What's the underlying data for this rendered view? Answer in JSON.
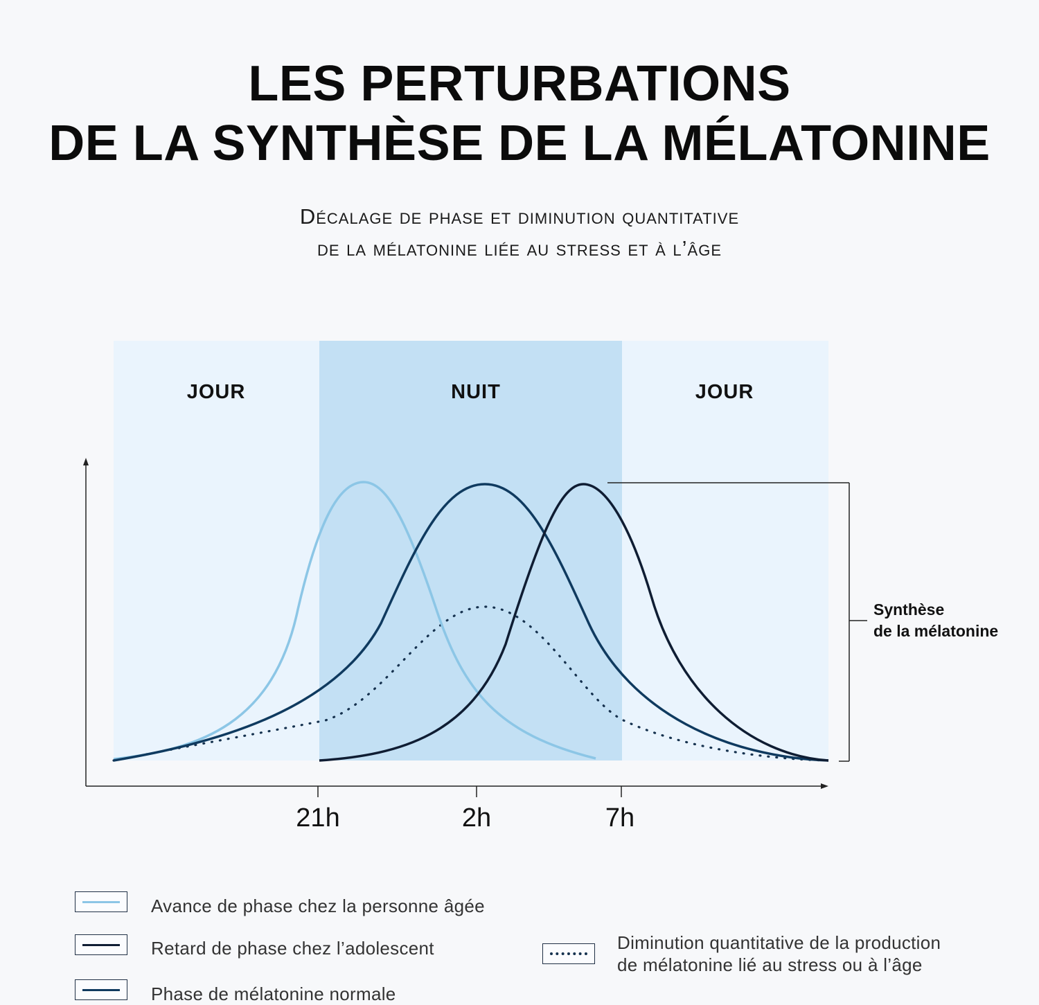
{
  "title_lines": [
    "LES PERTURBATIONS",
    "DE LA SYNTHÈSE DE LA MÉLATONINE"
  ],
  "subtitle_lines": [
    "Décalage de phase et diminution quantitative",
    "de la mélatonine liée au stress et à l’âge"
  ],
  "colors": {
    "jour_band": "#eaf4fd",
    "nuit_band": "#c3e0f4",
    "avance": "#8cc6e6",
    "retard": "#0f1d33",
    "normale": "#0f3a5f",
    "diminution": "#16324f"
  },
  "chart_data": {
    "type": "line",
    "title": "",
    "xlabel": "",
    "ylabel": "",
    "x_ticks": [
      "21h",
      "2h",
      "7h"
    ],
    "bands": [
      {
        "label": "JOUR",
        "from": "start",
        "to": "21h"
      },
      {
        "label": "NUIT",
        "from": "21h",
        "to": "7h"
      },
      {
        "label": "JOUR",
        "from": "7h",
        "to": "end"
      }
    ],
    "annotation": {
      "text_lines": [
        "Synthèse",
        "de la mélatonine"
      ]
    },
    "series": [
      {
        "name": "Avance de phase chez la personne âgée",
        "peak_hour": "22h30",
        "relative_peak": 1.0,
        "style": "solid"
      },
      {
        "name": "Phase de mélatonine normale",
        "peak_hour": "2h30",
        "relative_peak": 1.0,
        "style": "solid"
      },
      {
        "name": "Retard de phase chez l’adolescent",
        "peak_hour": "6h",
        "relative_peak": 1.0,
        "style": "solid"
      },
      {
        "name": "Diminution quantitative de la production de mélatonine lié au stress ou à l’âge",
        "peak_hour": "2h30",
        "relative_peak": 0.55,
        "style": "dotted"
      }
    ]
  },
  "legend": [
    {
      "text": "Avance de phase chez la personne âgée",
      "style": "solid",
      "color_key": "avance"
    },
    {
      "text": "Retard de phase chez l’adolescent",
      "style": "solid",
      "color_key": "retard"
    },
    {
      "text": "Phase de mélatonine normale",
      "style": "solid",
      "color_key": "normale"
    },
    {
      "text_lines": [
        "Diminution quantitative de la production",
        "de mélatonine lié au stress ou à l’âge"
      ],
      "style": "dotted",
      "color_key": "diminution"
    }
  ]
}
